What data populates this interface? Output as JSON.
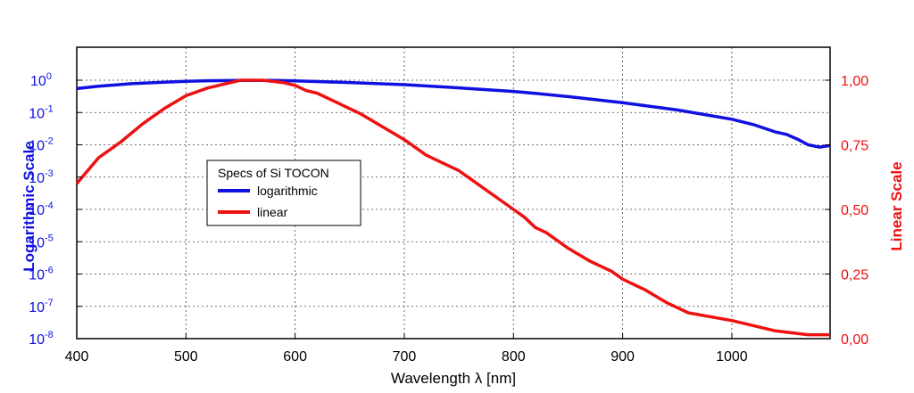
{
  "chart_data": {
    "type": "line",
    "xlabel": "Wavelength λ [nm]",
    "ylabel_left": "Logarithmic Scale",
    "ylabel_right": "Linear Scale",
    "xlim": [
      400,
      1090
    ],
    "x_ticks": [
      "400",
      "500",
      "600",
      "700",
      "800",
      "900",
      "1000"
    ],
    "x_tick_values": [
      400,
      500,
      600,
      700,
      800,
      900,
      1000
    ],
    "y_left": {
      "scale": "log",
      "ylim": [
        1e-08,
        1
      ],
      "ticks": [
        {
          "base": "10",
          "exp": "0"
        },
        {
          "base": "10",
          "exp": "-1"
        },
        {
          "base": "10",
          "exp": "-2"
        },
        {
          "base": "10",
          "exp": "-3"
        },
        {
          "base": "10",
          "exp": "-4"
        },
        {
          "base": "10",
          "exp": "-5"
        },
        {
          "base": "10",
          "exp": "-6"
        },
        {
          "base": "10",
          "exp": "-7"
        },
        {
          "base": "10",
          "exp": "-8"
        }
      ],
      "tick_values": [
        0,
        -1,
        -2,
        -3,
        -4,
        -5,
        -6,
        -7,
        -8
      ]
    },
    "y_right": {
      "scale": "linear",
      "ylim": [
        0,
        1
      ],
      "ticks": [
        "1,00",
        "0,75",
        "0,50",
        "0,25",
        "0,00"
      ],
      "tick_values": [
        1.0,
        0.75,
        0.5,
        0.25,
        0.0
      ]
    },
    "grid": true,
    "legend": {
      "title": "Specs of Si TOCON",
      "placement": "center-left"
    },
    "series": [
      {
        "name": "logarithmic",
        "color": "#1010e0",
        "axis": "left",
        "x": [
          400,
          420,
          450,
          480,
          500,
          520,
          550,
          580,
          600,
          650,
          700,
          750,
          800,
          820,
          850,
          900,
          950,
          1000,
          1020,
          1040,
          1050,
          1060,
          1070,
          1080,
          1090
        ],
        "y": [
          0.55,
          0.65,
          0.78,
          0.87,
          0.92,
          0.96,
          0.99,
          0.98,
          0.95,
          0.85,
          0.73,
          0.58,
          0.45,
          0.39,
          0.31,
          0.2,
          0.12,
          0.062,
          0.042,
          0.025,
          0.021,
          0.015,
          0.01,
          0.0085,
          0.0095
        ]
      },
      {
        "name": "linear",
        "color": "#ee1111",
        "axis": "right",
        "x": [
          400,
          410,
          420,
          440,
          460,
          470,
          480,
          500,
          520,
          540,
          550,
          570,
          580,
          590,
          600,
          610,
          620,
          640,
          660,
          680,
          700,
          720,
          750,
          760,
          800,
          810,
          820,
          830,
          850,
          870,
          890,
          900,
          920,
          940,
          960,
          1000,
          1040,
          1060,
          1070,
          1090
        ],
        "y": [
          0.6,
          0.65,
          0.7,
          0.76,
          0.83,
          0.86,
          0.89,
          0.94,
          0.97,
          0.99,
          1.0,
          1.0,
          0.995,
          0.99,
          0.98,
          0.96,
          0.95,
          0.91,
          0.87,
          0.82,
          0.77,
          0.71,
          0.65,
          0.62,
          0.5,
          0.47,
          0.43,
          0.41,
          0.35,
          0.3,
          0.26,
          0.23,
          0.19,
          0.14,
          0.1,
          0.07,
          0.03,
          0.02,
          0.015,
          0.015
        ]
      }
    ]
  }
}
